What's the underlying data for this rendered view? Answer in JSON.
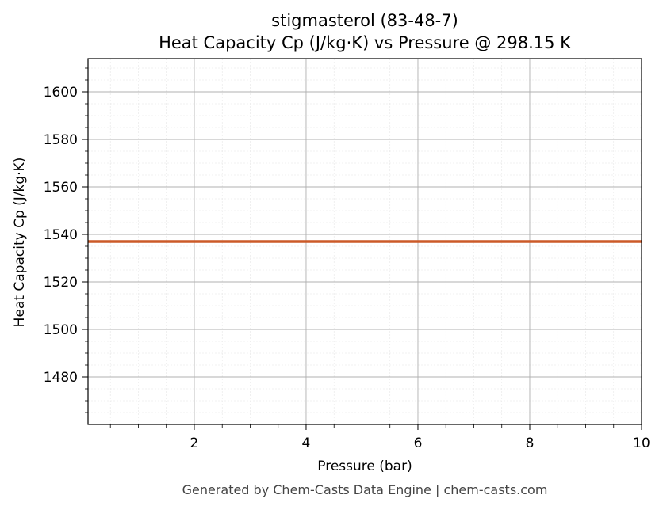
{
  "chart_data": {
    "type": "line",
    "title": "stigmasterol (83-48-7)",
    "subtitle": "Heat Capacity Cp (J/kg·K) vs Pressure @ 298.15 K",
    "xlabel": "Pressure (bar)",
    "ylabel": "Heat Capacity Cp (J/kg·K)",
    "xlim": [
      0.1,
      10
    ],
    "ylim": [
      1460,
      1614
    ],
    "x_ticks": [
      2,
      4,
      6,
      8,
      10
    ],
    "y_ticks": [
      1480,
      1500,
      1520,
      1540,
      1560,
      1580,
      1600
    ],
    "grid": true,
    "minor_grid": true,
    "series": [
      {
        "color": "#cc5a28",
        "x": [
          0.1,
          10
        ],
        "y": [
          1537,
          1537
        ]
      }
    ]
  },
  "footer": "Generated by Chem-Casts Data Engine | chem-casts.com"
}
